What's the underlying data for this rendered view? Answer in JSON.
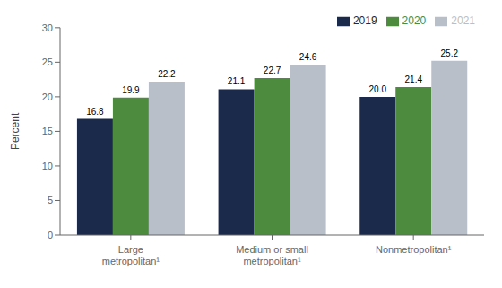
{
  "chart_data": {
    "type": "bar",
    "categories": [
      "Large metropolitan¹",
      "Medium or small metropolitan¹",
      "Nonmetropolitan¹"
    ],
    "series": [
      {
        "name": "2019",
        "color": "#1b2a4a",
        "values": [
          16.8,
          21.1,
          20.0
        ],
        "value_labels": [
          "16.8",
          "21.1",
          "20.0"
        ]
      },
      {
        "name": "2020",
        "color": "#4d8b3e",
        "values": [
          19.9,
          22.7,
          21.4
        ],
        "value_labels": [
          "19.9",
          "22.7",
          "21.4"
        ]
      },
      {
        "name": "2021",
        "color": "#b8bfc9",
        "values": [
          22.2,
          24.6,
          25.2
        ],
        "value_labels": [
          "22.2",
          "24.6",
          "25.2"
        ]
      }
    ],
    "ylabel": "Percent",
    "ylim": [
      0,
      30
    ],
    "yticks": [
      0,
      5,
      10,
      15,
      20,
      25,
      30
    ],
    "data_labels": true,
    "legend": "upper right",
    "grid": false
  }
}
